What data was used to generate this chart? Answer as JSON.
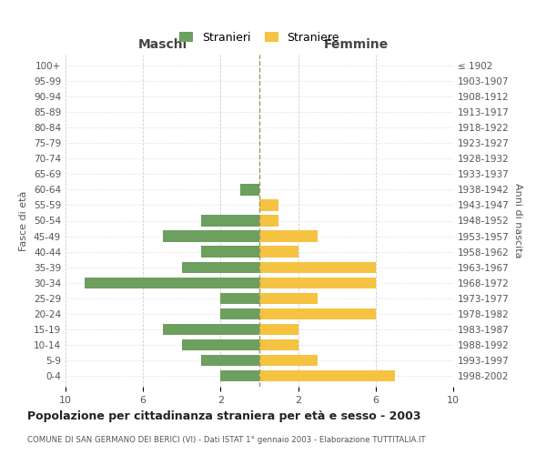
{
  "age_groups": [
    "100+",
    "95-99",
    "90-94",
    "85-89",
    "80-84",
    "75-79",
    "70-74",
    "65-69",
    "60-64",
    "55-59",
    "50-54",
    "45-49",
    "40-44",
    "35-39",
    "30-34",
    "25-29",
    "20-24",
    "15-19",
    "10-14",
    "5-9",
    "0-4"
  ],
  "birth_years": [
    "≤ 1902",
    "1903-1907",
    "1908-1912",
    "1913-1917",
    "1918-1922",
    "1923-1927",
    "1928-1932",
    "1933-1937",
    "1938-1942",
    "1943-1947",
    "1948-1952",
    "1953-1957",
    "1958-1962",
    "1963-1967",
    "1968-1972",
    "1973-1977",
    "1978-1982",
    "1983-1987",
    "1988-1992",
    "1993-1997",
    "1998-2002"
  ],
  "maschi": [
    0,
    0,
    0,
    0,
    0,
    0,
    0,
    0,
    1,
    0,
    3,
    5,
    3,
    4,
    9,
    2,
    2,
    5,
    4,
    3,
    2
  ],
  "femmine": [
    0,
    0,
    0,
    0,
    0,
    0,
    0,
    0,
    0,
    1,
    1,
    3,
    2,
    6,
    6,
    3,
    6,
    2,
    2,
    3,
    7
  ],
  "color_maschi": "#6d9f5e",
  "color_femmine": "#f5c242",
  "legend_maschi": "Stranieri",
  "legend_femmine": "Straniere",
  "title": "Popolazione per cittadinanza straniera per età e sesso - 2003",
  "subtitle": "COMUNE DI SAN GERMANO DEI BERICI (VI) - Dati ISTAT 1° gennaio 2003 - Elaborazione TUTTITALIA.IT",
  "xlabel_left": "Maschi",
  "xlabel_right": "Femmine",
  "ylabel_left": "Fasce di età",
  "ylabel_right": "Anni di nascita",
  "xlim": 10,
  "xticks": [
    -10,
    -6,
    -2,
    2,
    6,
    10
  ],
  "xtick_labels": [
    "10",
    "6",
    "2",
    "2",
    "6",
    "10"
  ],
  "background_color": "#ffffff",
  "grid_color": "#cccccc",
  "center_line_color": "#999966"
}
